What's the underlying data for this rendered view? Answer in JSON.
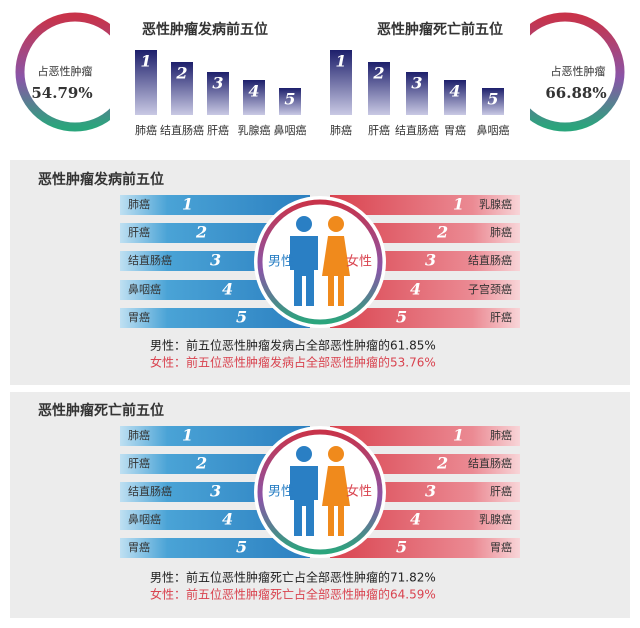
{
  "top": {
    "left_ring": {
      "label": "占恶性肿瘤",
      "value": "54.79%"
    },
    "right_ring": {
      "label": "占恶性肿瘤",
      "value": "66.88%"
    },
    "incidence": {
      "title": "恶性肿瘤发病前五位",
      "ranks": [
        1,
        2,
        3,
        4,
        5
      ],
      "labels": [
        "肺癌",
        "结直肠癌",
        "肝癌",
        "乳腺癌",
        "鼻咽癌"
      ]
    },
    "mortality": {
      "title": "恶性肿瘤死亡前五位",
      "ranks": [
        1,
        2,
        3,
        4,
        5
      ],
      "labels": [
        "肺癌",
        "肝癌",
        "结直肠癌",
        "胃癌",
        "鼻咽癌"
      ]
    }
  },
  "panels": [
    {
      "title": "恶性肿瘤发病前五位",
      "male_label": "男性",
      "female_label": "女性",
      "rows": [
        {
          "rank": 1,
          "male": "肺癌",
          "female": "乳腺癌"
        },
        {
          "rank": 2,
          "male": "肝癌",
          "female": "肺癌"
        },
        {
          "rank": 3,
          "male": "结直肠癌",
          "female": "结直肠癌"
        },
        {
          "rank": 4,
          "male": "鼻咽癌",
          "female": "子宫颈癌"
        },
        {
          "rank": 5,
          "male": "胃癌",
          "female": "肝癌"
        }
      ],
      "male_summary": "男性：前五位恶性肿瘤发病占全部恶性肿瘤的61.85%",
      "female_summary": "女性：前五位恶性肿瘤发病占全部恶性肿瘤的53.76%"
    },
    {
      "title": "恶性肿瘤死亡前五位",
      "male_label": "男性",
      "female_label": "女性",
      "rows": [
        {
          "rank": 1,
          "male": "肺癌",
          "female": "肺癌"
        },
        {
          "rank": 2,
          "male": "肝癌",
          "female": "结直肠癌"
        },
        {
          "rank": 3,
          "male": "结直肠癌",
          "female": "肝癌"
        },
        {
          "rank": 4,
          "male": "鼻咽癌",
          "female": "乳腺癌"
        },
        {
          "rank": 5,
          "male": "胃癌",
          "female": "胃癌"
        }
      ],
      "male_summary": "男性：前五位恶性肿瘤死亡占全部恶性肿瘤的71.82%",
      "female_summary": "女性：前五位恶性肿瘤死亡占全部恶性肿瘤的64.59%"
    }
  ]
}
